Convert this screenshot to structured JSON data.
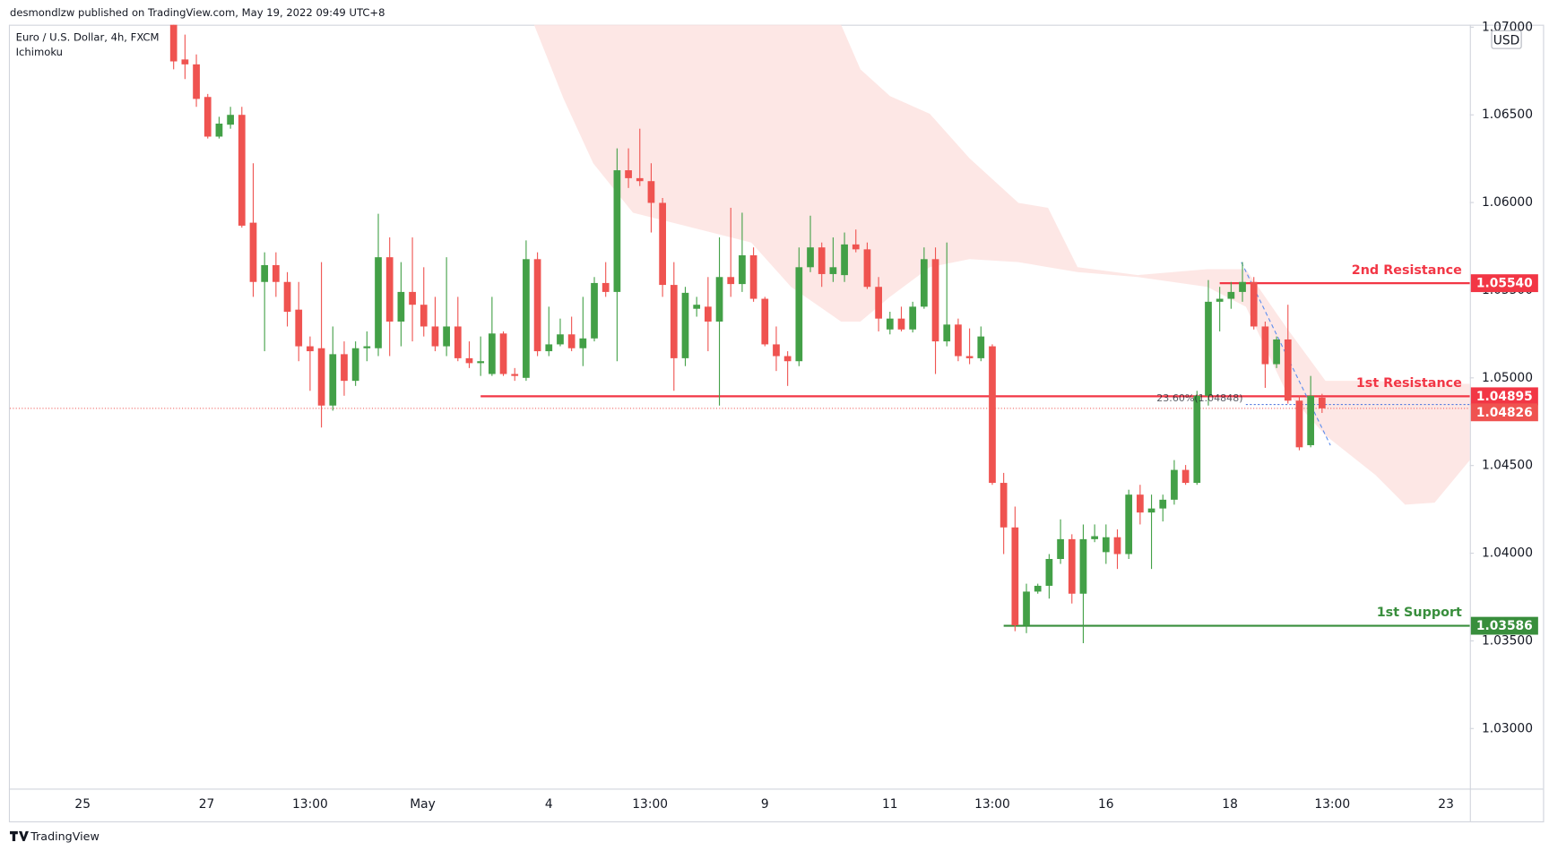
{
  "chart_data": {
    "type": "candlestick",
    "header": "desmondlzw published on TradingView.com, May 19, 2022 09:49 UTC+8",
    "title": "Euro / U.S. Dollar, 4h, FXCM",
    "subtitle": "Ichimoku",
    "currency": "USD",
    "footer": "TradingView",
    "up_color": "#43a047",
    "down_color": "#ef5350",
    "x": [
      0,
      1,
      2,
      3,
      4,
      5,
      6,
      7,
      8,
      9,
      10,
      11,
      12,
      13,
      14,
      15,
      16,
      17,
      18,
      19,
      20,
      21,
      22,
      23,
      24,
      25,
      26,
      27,
      28,
      29,
      30,
      31,
      32,
      33,
      34,
      35,
      36,
      37,
      38,
      39,
      40,
      41,
      42,
      43,
      44,
      45,
      46,
      47,
      48,
      49,
      50,
      51,
      52,
      53,
      54,
      55,
      56,
      57,
      58,
      59,
      60,
      61,
      62,
      63,
      64,
      65,
      66,
      67,
      68,
      69,
      70,
      71,
      72,
      73,
      74,
      75,
      76,
      77,
      78,
      79,
      80,
      81,
      82,
      83,
      84,
      85,
      86,
      87,
      88,
      89,
      90,
      91,
      92,
      93,
      94,
      95,
      96,
      97,
      98,
      99,
      100,
      101
    ],
    "open": [
      1.07014,
      1.06816,
      1.06788,
      1.06602,
      1.06376,
      1.06444,
      1.065,
      1.05885,
      1.05547,
      1.05643,
      1.05547,
      1.05389,
      1.0518,
      1.05169,
      1.04842,
      1.05135,
      1.04983,
      1.05169,
      1.05169,
      1.05688,
      1.05321,
      1.0549,
      1.05417,
      1.05293,
      1.0518,
      1.05293,
      1.05112,
      1.05084,
      1.05022,
      1.05253,
      1.05022,
      1.05,
      1.05677,
      1.05152,
      1.05191,
      1.05248,
      1.05169,
      1.05225,
      1.05541,
      1.0549,
      1.06184,
      1.06139,
      1.06122,
      1.05998,
      1.0553,
      1.05112,
      1.05394,
      1.05406,
      1.05321,
      1.05575,
      1.05535,
      1.05699,
      1.05451,
      1.05191,
      1.05124,
      1.05095,
      1.05631,
      1.05744,
      1.05592,
      1.05586,
      1.05761,
      1.05733,
      1.05519,
      1.05276,
      1.05338,
      1.05276,
      1.05406,
      1.05677,
      1.05208,
      1.05304,
      1.05124,
      1.05112,
      1.0518,
      1.04401,
      1.04147,
      1.03589,
      1.03781,
      1.03814,
      1.03967,
      1.0408,
      1.03769,
      1.0408,
      1.04006,
      1.04091,
      1.03995,
      1.04334,
      1.04232,
      1.04255,
      1.04305,
      1.04475,
      1.04401,
      1.04898,
      1.05434,
      1.05451,
      1.0549,
      1.05547,
      1.05293,
      1.05078,
      1.05219,
      1.0487,
      1.04616,
      1.04887
    ],
    "high": [
      1.07014,
      1.06958,
      1.06845,
      1.06619,
      1.06489,
      1.06546,
      1.06546,
      1.06224,
      1.05716,
      1.05716,
      1.05603,
      1.05547,
      1.05236,
      1.0566,
      1.05293,
      1.05208,
      1.05208,
      1.05265,
      1.05936,
      1.05801,
      1.0566,
      1.05801,
      1.05631,
      1.05462,
      1.05688,
      1.05462,
      1.05208,
      1.05236,
      1.05462,
      1.05265,
      1.05056,
      1.05784,
      1.05716,
      1.05406,
      1.05338,
      1.05349,
      1.05462,
      1.05575,
      1.0566,
      1.06309,
      1.06309,
      1.06421,
      1.06224,
      1.06026,
      1.0566,
      1.05519,
      1.05462,
      1.05575,
      1.05801,
      1.0597,
      1.05942,
      1.05744,
      1.05462,
      1.05293,
      1.05152,
      1.05744,
      1.05925,
      1.05772,
      1.05801,
      1.05829,
      1.05846,
      1.05772,
      1.05575,
      1.05377,
      1.05406,
      1.05434,
      1.05744,
      1.05744,
      1.05772,
      1.05338,
      1.05282,
      1.05293,
      1.05191,
      1.04458,
      1.04266,
      1.03826,
      1.03826,
      1.03995,
      1.04193,
      1.04108,
      1.04164,
      1.04164,
      1.04164,
      1.04136,
      1.04362,
      1.0439,
      1.04334,
      1.04334,
      1.04531,
      1.04503,
      1.04926,
      1.05558,
      1.05519,
      1.05547,
      1.0566,
      1.05575,
      1.05321,
      1.05236,
      1.05417,
      1.04898,
      1.05011,
      1.04909
    ],
    "low": [
      1.0676,
      1.06704,
      1.06546,
      1.06365,
      1.06365,
      1.06421,
      1.05857,
      1.05462,
      1.05152,
      1.05462,
      1.05293,
      1.05095,
      1.04926,
      1.04717,
      1.04813,
      1.04898,
      1.04954,
      1.05095,
      1.05124,
      1.05124,
      1.0518,
      1.05208,
      1.05236,
      1.05152,
      1.05124,
      1.05095,
      1.05056,
      1.05011,
      1.05011,
      1.05011,
      1.04983,
      1.04983,
      1.05124,
      1.05124,
      1.0518,
      1.05152,
      1.05067,
      1.05208,
      1.05462,
      1.05095,
      1.06083,
      1.06094,
      1.05829,
      1.05462,
      1.04926,
      1.05067,
      1.05349,
      1.05152,
      1.04842,
      1.05462,
      1.0549,
      1.05434,
      1.0518,
      1.05039,
      1.04954,
      1.05067,
      1.05603,
      1.05519,
      1.05547,
      1.05547,
      1.05716,
      1.05507,
      1.05265,
      1.05248,
      1.05265,
      1.05259,
      1.05394,
      1.05022,
      1.0518,
      1.05095,
      1.05078,
      1.05095,
      1.0439,
      1.03995,
      1.03555,
      1.03544,
      1.03769,
      1.03741,
      1.03939,
      1.03713,
      1.03487,
      1.04063,
      1.03939,
      1.0391,
      1.03967,
      1.04164,
      1.0391,
      1.04181,
      1.04277,
      1.0439,
      1.0439,
      1.04842,
      1.05265,
      1.05394,
      1.05434,
      1.05276,
      1.04943,
      1.05056,
      1.04853,
      1.04587,
      1.04604,
      1.048
    ],
    "close": [
      1.06805,
      1.06788,
      1.06591,
      1.06376,
      1.0645,
      1.065,
      1.05868,
      1.05547,
      1.05643,
      1.05547,
      1.05377,
      1.0518,
      1.05152,
      1.04842,
      1.05135,
      1.04983,
      1.05169,
      1.0518,
      1.05688,
      1.05321,
      1.0549,
      1.05417,
      1.05293,
      1.0518,
      1.05293,
      1.05112,
      1.05084,
      1.05095,
      1.05253,
      1.05022,
      1.05011,
      1.05677,
      1.05152,
      1.05191,
      1.05248,
      1.05169,
      1.05225,
      1.05541,
      1.0549,
      1.06184,
      1.06139,
      1.06122,
      1.05998,
      1.0553,
      1.05112,
      1.05485,
      1.05417,
      1.05321,
      1.05575,
      1.05535,
      1.05699,
      1.05451,
      1.05191,
      1.05124,
      1.05095,
      1.05631,
      1.05744,
      1.05592,
      1.05631,
      1.05761,
      1.05733,
      1.05519,
      1.05338,
      1.05338,
      1.05276,
      1.05406,
      1.05677,
      1.05208,
      1.05304,
      1.05124,
      1.05112,
      1.05236,
      1.04401,
      1.04147,
      1.03589,
      1.03781,
      1.03814,
      1.03967,
      1.0408,
      1.03769,
      1.0408,
      1.04097,
      1.04091,
      1.03995,
      1.04334,
      1.04232,
      1.04255,
      1.04305,
      1.04475,
      1.04401,
      1.04898,
      1.05434,
      1.05451,
      1.0549,
      1.05547,
      1.05293,
      1.05078,
      1.05219,
      1.0487,
      1.04604,
      1.04898,
      1.04826
    ],
    "cloud": {
      "color": "#fde3e1",
      "x": [
        31.7,
        34.3,
        36.9,
        40.4,
        43.9,
        47.3,
        50.8,
        54.3,
        58.7,
        60.4,
        63.0,
        66.5,
        70.0,
        74.3,
        76.9,
        79.5,
        84.8,
        90.9,
        94.3,
        97.8,
        101.3,
        105.7,
        108.3,
        110.9,
        114.0
      ],
      "span_a": [
        1.07014,
        1.07014,
        1.07014,
        1.07014,
        1.07014,
        1.07014,
        1.07014,
        1.07014,
        1.07014,
        1.0676,
        1.06607,
        1.06506,
        1.06252,
        1.05998,
        1.0597,
        1.05631,
        1.05586,
        1.0562,
        1.0562,
        1.05293,
        1.04983,
        1.04983,
        1.04971,
        1.04966,
        1.04966
      ],
      "span_b": [
        1.07014,
        1.06591,
        1.06224,
        1.05942,
        1.05885,
        1.05829,
        1.05772,
        1.05519,
        1.05321,
        1.05321,
        1.05462,
        1.05631,
        1.05677,
        1.0566,
        1.05631,
        1.05603,
        1.05575,
        1.05519,
        1.05406,
        1.04926,
        1.04672,
        1.04446,
        1.04277,
        1.04288,
        1.04531
      ]
    },
    "levels": [
      {
        "name": "2nd Resistance",
        "value": 1.0554,
        "label": "1.05540",
        "start": 92.0,
        "color": "#f23645"
      },
      {
        "name": "1st Resistance",
        "value": 1.04895,
        "label": "1.04895",
        "start": 27.0,
        "color": "#f23645"
      },
      {
        "name": "1st Support",
        "value": 1.03586,
        "label": "1.03586",
        "start": 73.0,
        "color": "#388e3c"
      }
    ],
    "last_price": {
      "value": 1.04826,
      "label": "1.04826",
      "color": "#ef5350"
    },
    "fib": {
      "value": 1.04848,
      "label": "23.60%(1.04848)",
      "start": 94.3,
      "color": "#5b7fe0"
    },
    "xlim": [
      -14.4,
      114.0
    ],
    "xticks": [
      {
        "value": -8.0,
        "label": "25"
      },
      {
        "value": 2.9,
        "label": "27"
      },
      {
        "value": 12.0,
        "label": "13:00"
      },
      {
        "value": 21.9,
        "label": "May"
      },
      {
        "value": 33.0,
        "label": "4"
      },
      {
        "value": 41.9,
        "label": "13:00"
      },
      {
        "value": 52.0,
        "label": "9"
      },
      {
        "value": 63.0,
        "label": "11"
      },
      {
        "value": 72.0,
        "label": "13:00"
      },
      {
        "value": 82.0,
        "label": "16"
      },
      {
        "value": 92.9,
        "label": "18"
      },
      {
        "value": 101.9,
        "label": "13:00"
      },
      {
        "value": 111.9,
        "label": "23"
      }
    ],
    "ylim": [
      1.02657,
      1.07014
    ],
    "yticks": [
      {
        "value": 1.03,
        "label": "1.03000"
      },
      {
        "value": 1.035,
        "label": "1.03500"
      },
      {
        "value": 1.04,
        "label": "1.04000"
      },
      {
        "value": 1.045,
        "label": "1.04500"
      },
      {
        "value": 1.05,
        "label": "1.05000"
      },
      {
        "value": 1.055,
        "label": "1.05500"
      },
      {
        "value": 1.06,
        "label": "1.06000"
      },
      {
        "value": 1.065,
        "label": "1.06500"
      },
      {
        "value": 1.07,
        "label": "1.07000"
      }
    ]
  }
}
